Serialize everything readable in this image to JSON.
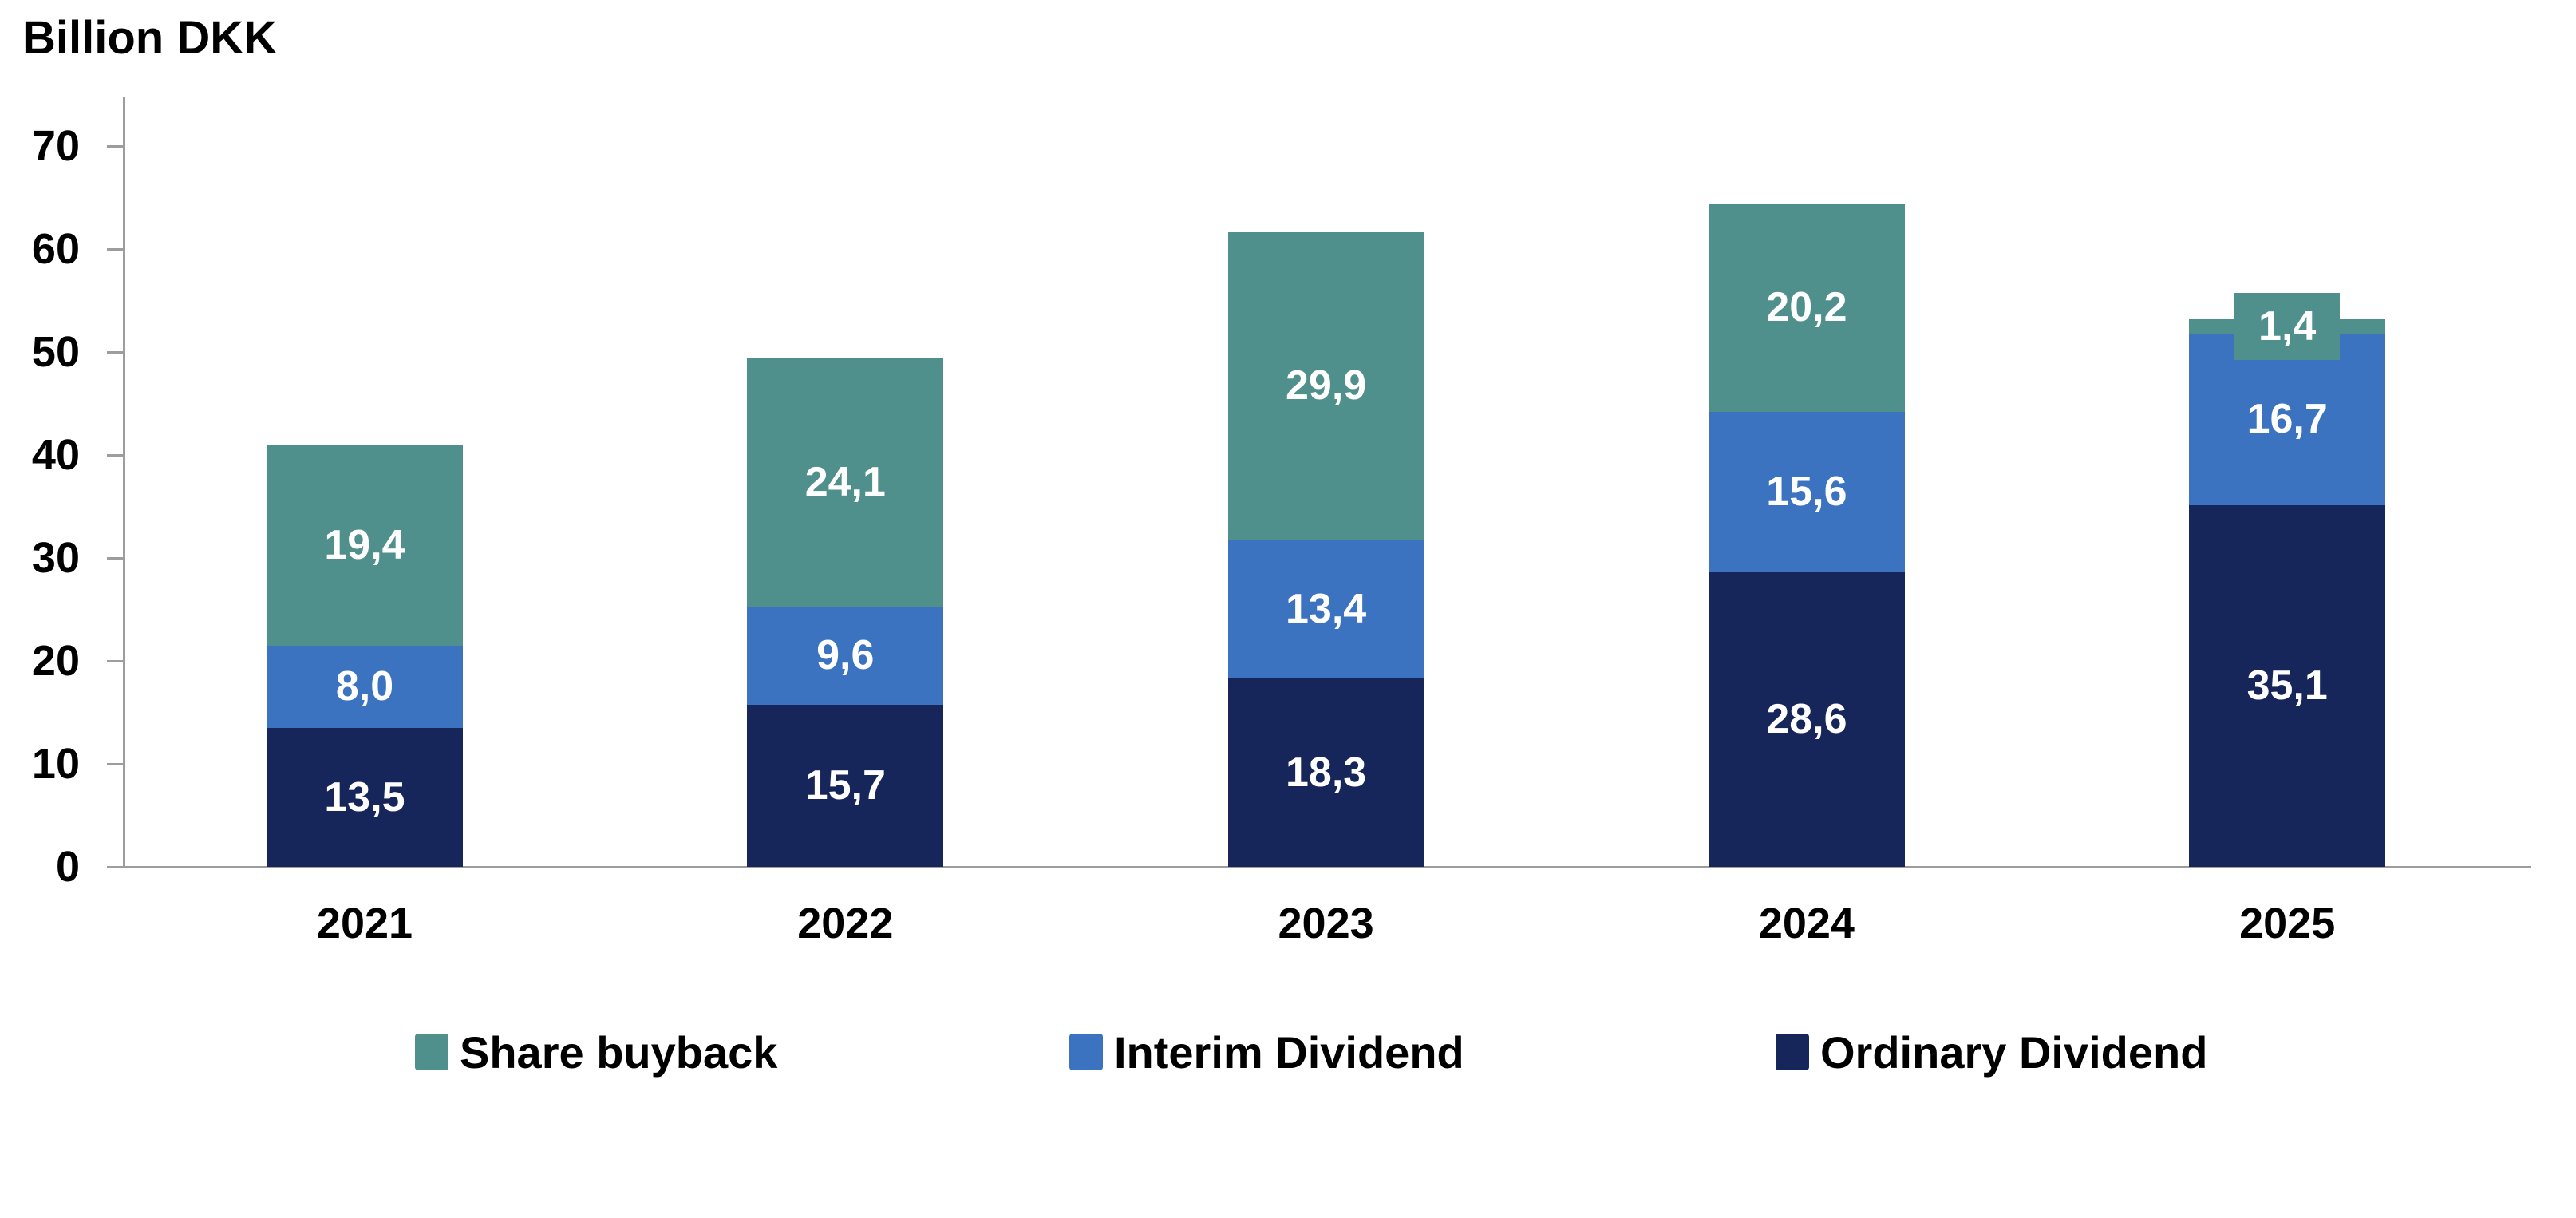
{
  "chart_data": {
    "type": "bar",
    "stacked": true,
    "title": "Billion DKK",
    "xlabel": "",
    "ylabel": "Billion DKK",
    "categories": [
      "2021",
      "2022",
      "2023",
      "2024",
      "2025"
    ],
    "series": [
      {
        "name": "Share buyback",
        "color": "#4F8F8C",
        "values": [
          19.4,
          24.1,
          29.9,
          20.2,
          1.4
        ]
      },
      {
        "name": "Interim Dividend",
        "color": "#3B73C1",
        "values": [
          8.0,
          9.6,
          13.4,
          15.6,
          16.7
        ]
      },
      {
        "name": "Ordinary Dividend",
        "color": "#16255A",
        "values": [
          13.5,
          15.7,
          18.3,
          28.6,
          35.1
        ]
      }
    ],
    "stack_order_bottom_to_top": [
      "Ordinary Dividend",
      "Interim Dividend",
      "Share buyback"
    ],
    "totals": [
      40.9,
      49.4,
      61.6,
      64.4,
      53.2
    ],
    "yticks": [
      0,
      10,
      20,
      30,
      40,
      50,
      60,
      70
    ],
    "ylim": [
      0,
      70
    ],
    "grid": false,
    "legend_position": "bottom",
    "value_label_color": "#FFFFFF",
    "value_label_decimal_separator": ",",
    "axis_color": "#9D9D9D",
    "text_color": "#000000"
  }
}
